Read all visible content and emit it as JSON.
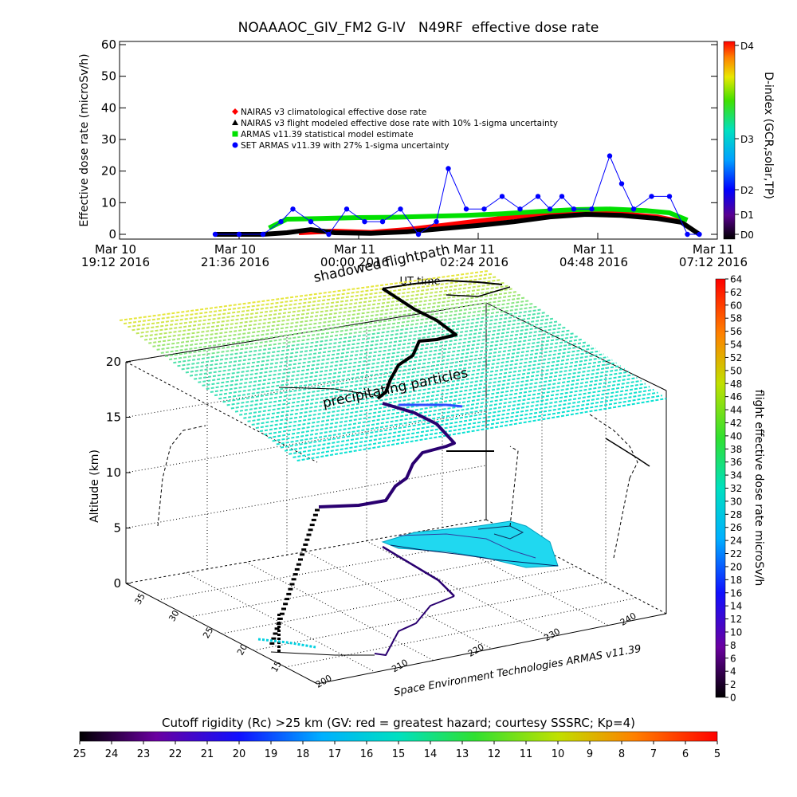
{
  "title": "NOAAAOC_GIV_FM2 G-IV   N49RF  effective dose rate",
  "chart_data": [
    {
      "type": "scatter",
      "title": "NOAAAOC_GIV_FM2 G-IV   N49RF  effective dose rate",
      "xlabel": "UT time",
      "ylabel": "Effective dose rate (microSv/h)",
      "ylim": [
        0,
        60
      ],
      "y_ticks": [
        "0",
        "10",
        "20",
        "30",
        "40",
        "50",
        "60"
      ],
      "x_ticks": [
        {
          "day": "Mar 10",
          "time": "19:12 2016"
        },
        {
          "day": "Mar 10",
          "time": "21:36 2016"
        },
        {
          "day": "Mar 11",
          "time": "00:00 2016"
        },
        {
          "day": "Mar 11",
          "time": "02:24 2016"
        },
        {
          "day": "Mar 11",
          "time": "04:48 2016"
        },
        {
          "day": "Mar 11",
          "time": "07:12 2016"
        }
      ],
      "legend": [
        {
          "label": "NAIRAS v3 climatological effective dose rate",
          "color": "#ff0000",
          "marker": "diamond"
        },
        {
          "label": "NAIRAS v3 flight modeled effective dose rate with 10% 1-sigma uncertainty",
          "color": "#000000",
          "marker": "triangle"
        },
        {
          "label": "ARMAS v11.39 statistical model estimate",
          "color": "#00e000",
          "marker": "square"
        },
        {
          "label": "SET ARMAS v11.39 with 27% 1-sigma uncertainty",
          "color": "#0000ff",
          "marker": "circle"
        }
      ],
      "series": [
        {
          "name": "NAIRAS v3 climatological effective dose rate",
          "color": "#ff0000",
          "x": [
            1.5,
            1.8,
            2.1,
            2.4,
            2.7,
            3.0,
            3.3,
            3.6,
            3.9,
            4.2,
            4.5,
            4.7
          ],
          "values": [
            0.5,
            1.0,
            0.6,
            1.5,
            2.8,
            4.2,
            5.5,
            6.8,
            7.0,
            6.5,
            5.5,
            4.0
          ]
        },
        {
          "name": "NAIRAS v3 flight modeled effective dose rate with 10% 1-sigma uncertainty",
          "color": "#000000",
          "x": [
            0.8,
            1.2,
            1.4,
            1.6,
            1.8,
            2.1,
            2.4,
            2.7,
            3.0,
            3.3,
            3.6,
            3.9,
            4.2,
            4.5,
            4.7,
            4.85
          ],
          "values": [
            0.0,
            0.0,
            0.5,
            1.5,
            0.5,
            0.3,
            0.8,
            1.8,
            2.8,
            4.0,
            5.5,
            6.3,
            6.0,
            5.0,
            3.8,
            0.0
          ]
        },
        {
          "name": "ARMAS v11.39 statistical model estimate",
          "color": "#00e000",
          "x": [
            1.25,
            1.4,
            1.7,
            2.0,
            2.3,
            2.6,
            2.9,
            3.2,
            3.5,
            3.8,
            4.1,
            4.4,
            4.6,
            4.75
          ],
          "values": [
            2.0,
            4.8,
            5.0,
            5.3,
            5.4,
            5.7,
            6.0,
            6.5,
            7.2,
            7.8,
            8.0,
            7.5,
            6.8,
            4.5
          ]
        },
        {
          "name": "SET ARMAS v11.39 with 27% 1-sigma uncertainty",
          "color": "#0000ff",
          "x": [
            0.8,
            1.0,
            1.2,
            1.35,
            1.45,
            1.6,
            1.75,
            1.9,
            2.05,
            2.2,
            2.35,
            2.5,
            2.65,
            2.75,
            2.9,
            3.05,
            3.2,
            3.35,
            3.5,
            3.6,
            3.7,
            3.8,
            3.95,
            4.1,
            4.2,
            4.3,
            4.45,
            4.6,
            4.75,
            4.85
          ],
          "values": [
            0.0,
            0.0,
            0.0,
            4.0,
            8.0,
            4.0,
            0.0,
            8.0,
            4.0,
            4.0,
            8.0,
            0.0,
            4.0,
            20.8,
            8.0,
            8.0,
            12.0,
            8.0,
            12.0,
            8.0,
            12.0,
            8.0,
            8.0,
            24.8,
            16.0,
            8.0,
            12.0,
            12.0,
            0.0,
            0.0
          ]
        }
      ]
    },
    {
      "type": "heatmap",
      "name": "D-index colorbar",
      "label": "D-index (GCR,solar,TP)",
      "ticks": [
        "D0",
        "D1",
        "D2",
        "D3",
        "D4"
      ]
    },
    {
      "type": "scatter",
      "name": "3D flight path",
      "annotations": [
        "shadowed flightpath",
        "precipitating particles",
        "Space Environment Technologies ARMAS v11.39"
      ],
      "zlabel": "Altitude (km)",
      "z_ticks": [
        "0",
        "5",
        "10",
        "15",
        "20"
      ],
      "lat_ticks": [
        "15",
        "20",
        "25",
        "30",
        "35"
      ],
      "lon_ticks": [
        "200",
        "210",
        "220",
        "230",
        "240"
      ],
      "colorbar": {
        "label": "flight effective dose rate microSv/h",
        "ticks": [
          "0",
          "2",
          "4",
          "6",
          "8",
          "10",
          "12",
          "14",
          "16",
          "18",
          "20",
          "22",
          "24",
          "26",
          "28",
          "30",
          "32",
          "34",
          "36",
          "38",
          "40",
          "42",
          "44",
          "46",
          "48",
          "50",
          "52",
          "54",
          "56",
          "58",
          "60",
          "62",
          "64"
        ]
      }
    },
    {
      "type": "heatmap",
      "name": "Cutoff rigidity colorbar",
      "title": "Cutoff rigidity (Rc) >25 km (GV: red = greatest hazard; courtesy SSSRC; Kp=4)",
      "ticks": [
        "25",
        "24",
        "23",
        "22",
        "21",
        "20",
        "19",
        "18",
        "17",
        "16",
        "15",
        "14",
        "13",
        "12",
        "11",
        "10",
        "9",
        "8",
        "7",
        "6",
        "5"
      ]
    }
  ]
}
